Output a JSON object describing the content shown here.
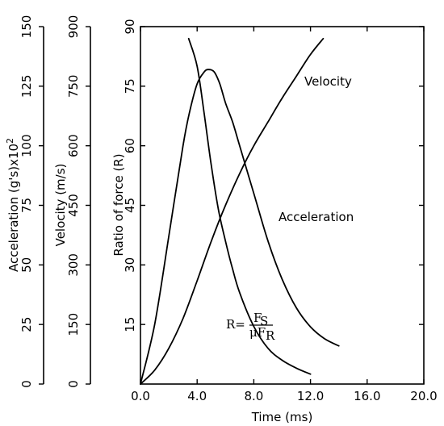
{
  "chart_data": {
    "type": "line",
    "xlabel": "Time (ms)",
    "x_ticks": [
      "0.0",
      "4.0",
      "8.0",
      "12.0",
      "16.0",
      "20.0"
    ],
    "xlim": [
      0,
      20
    ],
    "grid": false,
    "legend": "none",
    "axes": [
      {
        "name": "ratio",
        "label": "Ratio of force (R)",
        "ticks": [
          "15",
          "30",
          "45",
          "60",
          "75",
          "90"
        ],
        "ylim": [
          0,
          90
        ]
      },
      {
        "name": "velocity",
        "label": "Velocity (m/s)",
        "ticks": [
          "0",
          "150",
          "300",
          "450",
          "600",
          "750",
          "900"
        ],
        "ylim": [
          0,
          900
        ]
      },
      {
        "name": "acceleration",
        "label": "Acceleration (g's)x10",
        "label_superscript": "2",
        "ticks": [
          "0",
          "25",
          "50",
          "75",
          "100",
          "125",
          "150"
        ],
        "ylim": [
          0,
          150
        ]
      }
    ],
    "series": [
      {
        "name": "Velocity",
        "axis": "velocity",
        "x": [
          0,
          1,
          2,
          3,
          4,
          5,
          6,
          7,
          8,
          9,
          10,
          11,
          12,
          12.9
        ],
        "y": [
          0,
          35,
          90,
          165,
          260,
          360,
          450,
          530,
          600,
          660,
          720,
          775,
          830,
          870
        ]
      },
      {
        "name": "Acceleration",
        "axis": "acceleration",
        "x": [
          0,
          1,
          2,
          3,
          3.5,
          4,
          4.5,
          4.8,
          5.2,
          5.6,
          6,
          6.5,
          7,
          8,
          9,
          10,
          11,
          12,
          13,
          14
        ],
        "y": [
          0,
          25,
          62,
          100,
          115,
          126,
          131,
          132,
          131,
          126,
          118,
          110,
          100,
          80,
          60,
          44,
          32,
          24,
          19,
          16
        ]
      },
      {
        "name": "R",
        "axis": "ratio",
        "x": [
          3.4,
          4,
          4.5,
          5,
          5.5,
          6,
          6.5,
          7,
          8,
          9,
          10,
          11,
          12
        ],
        "y": [
          87,
          80,
          68,
          55,
          44,
          36,
          29,
          23,
          14.5,
          9,
          6,
          4,
          2.5
        ]
      }
    ],
    "annotations": {
      "velocity_label": "Velocity",
      "acceleration_label": "Acceleration",
      "formula_lhs": "R=",
      "formula_num": "F",
      "formula_num_sub": "S",
      "formula_den": "μF",
      "formula_den_sub": "R"
    }
  }
}
